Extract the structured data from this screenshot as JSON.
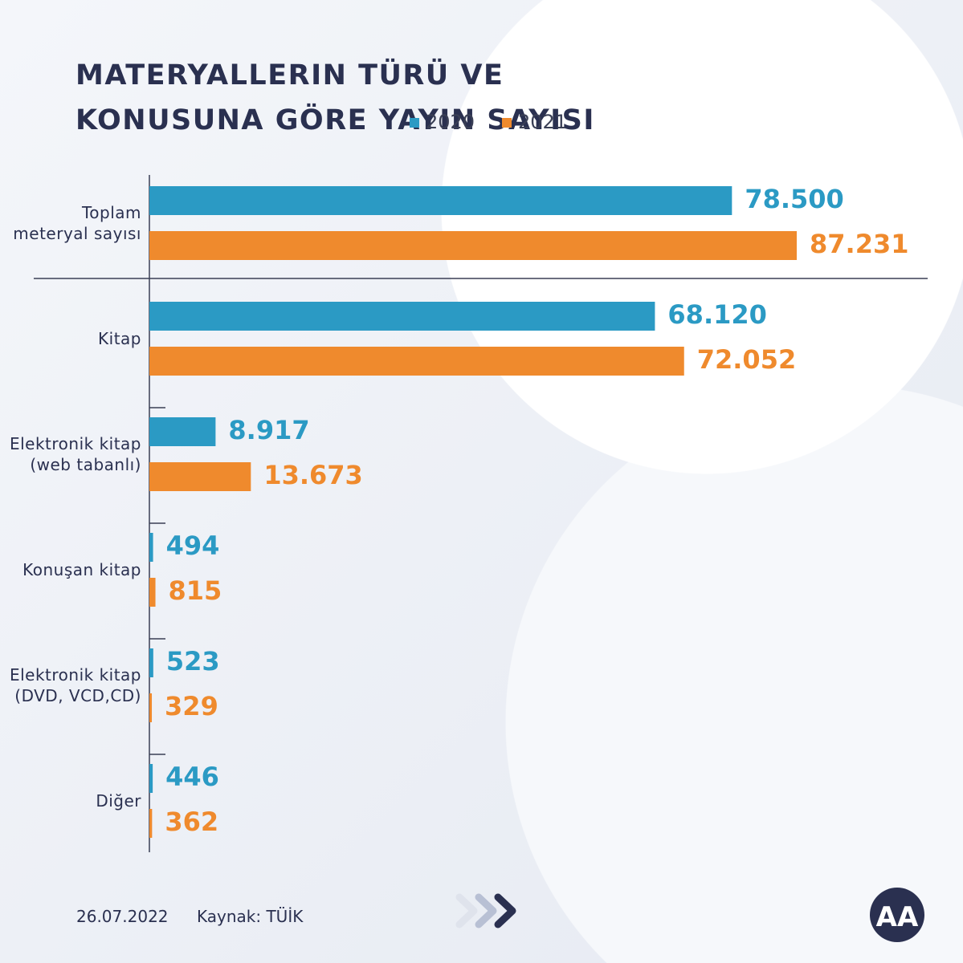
{
  "chart_data": {
    "type": "bar",
    "orientation": "horizontal",
    "title": "MATERYALLERIN TÜRÜ VE KONUSUNA GÖRE YAYIN SAYISI",
    "categories": [
      "Toplam meteryal sayısı",
      "Kitap",
      "Elektronik kitap (web tabanlı)",
      "Konuşan kitap",
      "Elektronik kitap (DVD, VCD,CD)",
      "Diğer"
    ],
    "series": [
      {
        "name": "2020",
        "color": "#2b9ac4",
        "values": [
          78500,
          68120,
          8917,
          494,
          523,
          446
        ],
        "value_labels": [
          "78.500",
          "68.120",
          "8.917",
          "494",
          "523",
          "446"
        ]
      },
      {
        "name": "2021",
        "color": "#ef8a2d",
        "values": [
          87231,
          72052,
          13673,
          815,
          329,
          362
        ],
        "value_labels": [
          "87.231",
          "72.052",
          "13.673",
          "815",
          "329",
          "362"
        ]
      }
    ],
    "date": "26.07.2022",
    "source": "Kaynak: TÜİK"
  }
}
